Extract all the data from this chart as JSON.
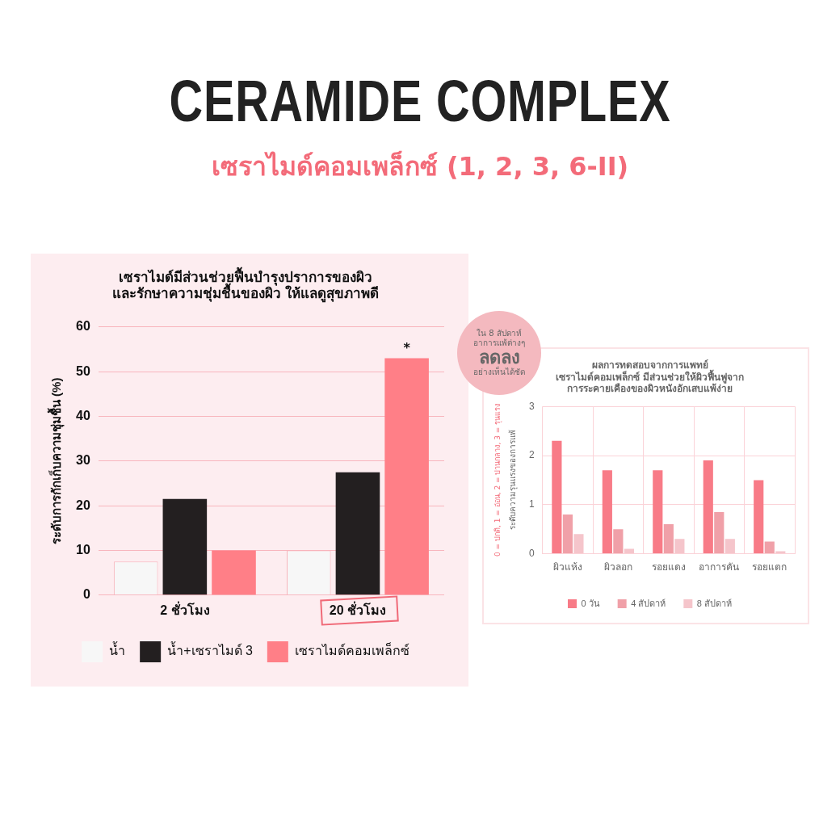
{
  "chart_data": [
    {
      "type": "bar",
      "title": "เซราไมด์มีส่วนช่วยฟื้นบำรุงปราการของผิว\nและรักษาความชุ่มชื้นของผิว ให้แลดูสุขภาพดี",
      "ylabel": "ระดับการกักเก็บความชุ่มชื้น (%)",
      "categories": [
        "2 ชั่วโมง",
        "20 ชั่วโมง"
      ],
      "series": [
        {
          "name": "น้ำ",
          "color": "#f7f7f7",
          "values": [
            7.5,
            10
          ]
        },
        {
          "name": "น้ำ+เซราไมด์ 3",
          "color": "#231f20",
          "values": [
            21.5,
            27.5
          ]
        },
        {
          "name": "เซราไมด์คอมเพล็กซ์",
          "color": "#ff7f87",
          "values": [
            10,
            53
          ],
          "value_labels": [
            null,
            "*"
          ]
        }
      ],
      "ylim": [
        0,
        60
      ],
      "yticks": [
        0,
        10,
        20,
        30,
        40,
        50,
        60
      ],
      "grid": "y",
      "legend": "bottom",
      "annotations": [
        "CERAMIDE COMPLEX",
        "เซราไมด์คอมเพล็กซ์ (1, 2, 3, 6-II)"
      ]
    },
    {
      "type": "bar",
      "title": "ผลการทดสอบจากการแพทย์\nเซราไมด์คอมเพล็กซ์ มีส่วนช่วยให้ผิวฟื้นฟูจาก\nการระคายเคืองของผิวหนังอักเสบแพ้ง่าย",
      "ylabel": "ระดับความรุนแรงของการแพ้",
      "categories": [
        "ผิวแห้ง",
        "ผิวลอก",
        "รอยแดง",
        "อาการคัน",
        "รอยแตก"
      ],
      "series": [
        {
          "name": "0 วัน",
          "color": "#f87b87",
          "values": [
            2.3,
            1.7,
            1.7,
            1.9,
            1.5
          ]
        },
        {
          "name": "4 สัปดาห์",
          "color": "#f0a0a8",
          "values": [
            0.8,
            0.5,
            0.6,
            0.85,
            0.25
          ]
        },
        {
          "name": "8 สัปดาห์",
          "color": "#f5c5cb",
          "values": [
            0.4,
            0.1,
            0.3,
            0.3,
            0.05
          ]
        }
      ],
      "ylim": [
        0,
        3
      ],
      "yticks": [
        0,
        1,
        2,
        3
      ],
      "grid": true,
      "legend": "bottom",
      "annotations": [
        "0 = ปกติ, 1 = อ่อน, 2 = ปานกลาง, 3 = รุนแรง",
        "ใน 8 สัปดาห์\nอาการแพ้ต่างๆ\nลดลง\nอย่างเห็นได้ชัด"
      ]
    }
  ]
}
